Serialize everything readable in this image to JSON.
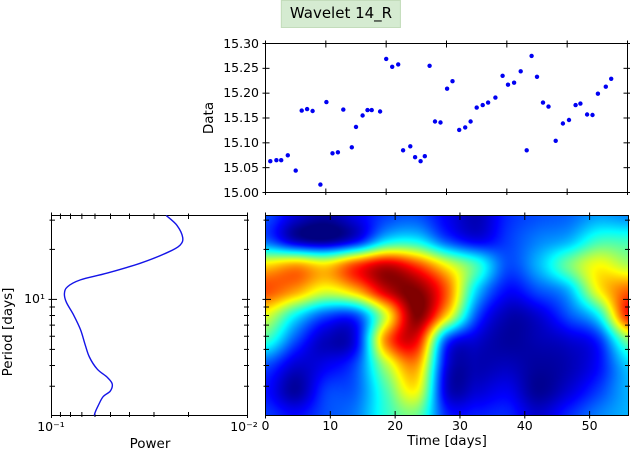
{
  "figure": {
    "title": "Wavelet 14_R",
    "title_bg": "#d5ebd1",
    "title_border": "#c3dcbb",
    "background": "#ffffff",
    "frame_color": "#000000"
  },
  "chart_data": [
    {
      "id": "data-scatter",
      "type": "scatter",
      "ylabel": "Data",
      "marker_color": "#0000f2",
      "xlim": [
        0,
        60
      ],
      "ylim": [
        15.0,
        15.3
      ],
      "xticks": [
        0,
        10,
        20,
        30,
        40,
        50,
        60
      ],
      "yticks": [
        15.0,
        15.05,
        15.1,
        15.15,
        15.2,
        15.25,
        15.3
      ],
      "ytick_labels": [
        "15.00",
        "15.05",
        "15.10",
        "15.15",
        "15.20",
        "15.25",
        "15.30"
      ],
      "points_time_mag": [
        [
          0.8,
          15.063
        ],
        [
          1.8,
          15.065
        ],
        [
          2.6,
          15.065
        ],
        [
          3.7,
          15.075
        ],
        [
          5.0,
          15.044
        ],
        [
          6.0,
          15.165
        ],
        [
          6.9,
          15.168
        ],
        [
          7.8,
          15.164
        ],
        [
          9.1,
          15.016
        ],
        [
          10.1,
          15.182
        ],
        [
          11.1,
          15.079
        ],
        [
          12.0,
          15.081
        ],
        [
          12.9,
          15.167
        ],
        [
          14.3,
          15.091
        ],
        [
          15.0,
          15.132
        ],
        [
          16.1,
          15.155
        ],
        [
          16.9,
          15.166
        ],
        [
          17.6,
          15.166
        ],
        [
          19.0,
          15.163
        ],
        [
          20.0,
          15.269
        ],
        [
          21.0,
          15.253
        ],
        [
          22.0,
          15.258
        ],
        [
          22.8,
          15.085
        ],
        [
          24.0,
          15.093
        ],
        [
          24.8,
          15.071
        ],
        [
          25.7,
          15.063
        ],
        [
          26.4,
          15.073
        ],
        [
          27.2,
          15.255
        ],
        [
          28.1,
          15.143
        ],
        [
          29.0,
          15.141
        ],
        [
          30.1,
          15.209
        ],
        [
          31.0,
          15.224
        ],
        [
          32.1,
          15.126
        ],
        [
          33.1,
          15.131
        ],
        [
          34.0,
          15.143
        ],
        [
          35.0,
          15.171
        ],
        [
          36.0,
          15.176
        ],
        [
          36.9,
          15.181
        ],
        [
          38.1,
          15.191
        ],
        [
          39.3,
          15.235
        ],
        [
          40.2,
          15.217
        ],
        [
          41.2,
          15.221
        ],
        [
          42.3,
          15.244
        ],
        [
          43.3,
          15.085
        ],
        [
          44.1,
          15.275
        ],
        [
          45.0,
          15.233
        ],
        [
          46.0,
          15.181
        ],
        [
          46.9,
          15.173
        ],
        [
          48.1,
          15.104
        ],
        [
          49.3,
          15.139
        ],
        [
          50.3,
          15.146
        ],
        [
          51.4,
          15.176
        ],
        [
          52.2,
          15.179
        ],
        [
          53.3,
          15.157
        ],
        [
          54.2,
          15.156
        ],
        [
          55.1,
          15.199
        ],
        [
          56.4,
          15.213
        ],
        [
          57.3,
          15.229
        ]
      ]
    },
    {
      "id": "power-spectrum",
      "type": "line",
      "xlabel": "Power",
      "ylabel": "Period [days]",
      "line_color": "#1414e8",
      "x_scale": "log-reversed",
      "y_scale": "log",
      "xlim": [
        0.1,
        0.01
      ],
      "ylim_period": [
        32,
        2
      ],
      "xtick_labels": [
        "10⁻¹",
        "10⁻²"
      ],
      "ytick_label_major": "10¹",
      "curve_power_period": [
        [
          0.026,
          32.0
        ],
        [
          0.0229,
          27.9
        ],
        [
          0.0214,
          23.6
        ],
        [
          0.0221,
          21.2
        ],
        [
          0.0255,
          19.2
        ],
        [
          0.0353,
          16.5
        ],
        [
          0.052,
          14.4
        ],
        [
          0.0712,
          13.1
        ],
        [
          0.083,
          11.9
        ],
        [
          0.0859,
          10.8
        ],
        [
          0.0839,
          9.6
        ],
        [
          0.0773,
          8.1
        ],
        [
          0.0712,
          6.6
        ],
        [
          0.0672,
          5.3
        ],
        [
          0.0641,
          4.5
        ],
        [
          0.0584,
          3.8
        ],
        [
          0.052,
          3.4
        ],
        [
          0.049,
          3.1
        ],
        [
          0.0502,
          2.8
        ],
        [
          0.0545,
          2.6
        ],
        [
          0.0577,
          2.3
        ],
        [
          0.0598,
          2.1
        ],
        [
          0.0605,
          2.0
        ]
      ]
    },
    {
      "id": "wavelet-heatmap",
      "type": "heatmap",
      "xlabel": "Time [days]",
      "colormap": "jet",
      "xlim": [
        0,
        56
      ],
      "xticks": [
        0,
        10,
        20,
        30,
        40,
        50
      ],
      "xtick_labels": [
        "0",
        "10",
        "20",
        "30",
        "40",
        "50"
      ],
      "y_scale": "log",
      "ylim_period": [
        32,
        2
      ],
      "grid_values_rows_top_to_bottom": [
        [
          0.2,
          0.08,
          0.03,
          0.1,
          0.18,
          0.2,
          0.11,
          0.05,
          0.16,
          0.2,
          0.22,
          0.28,
          0.26
        ],
        [
          0.22,
          0.06,
          0.02,
          0.12,
          0.35,
          0.37,
          0.2,
          0.11,
          0.18,
          0.25,
          0.3,
          0.43,
          0.43
        ],
        [
          0.66,
          0.72,
          0.66,
          0.82,
          0.93,
          0.82,
          0.62,
          0.43,
          0.2,
          0.3,
          0.48,
          0.62,
          0.55
        ],
        [
          0.8,
          0.72,
          0.6,
          0.7,
          0.93,
          1.0,
          0.78,
          0.33,
          0.13,
          0.2,
          0.3,
          0.62,
          0.78
        ],
        [
          0.6,
          0.37,
          0.2,
          0.2,
          0.6,
          1.0,
          0.66,
          0.2,
          0.05,
          0.08,
          0.2,
          0.37,
          0.85
        ],
        [
          0.43,
          0.2,
          0.06,
          0.12,
          0.75,
          0.88,
          0.2,
          0.08,
          0.03,
          0.05,
          0.08,
          0.16,
          0.5
        ],
        [
          0.2,
          0.08,
          0.11,
          0.2,
          0.55,
          0.72,
          0.1,
          0.05,
          0.06,
          0.03,
          0.05,
          0.13,
          0.33
        ],
        [
          0.14,
          0.03,
          0.18,
          0.22,
          0.45,
          0.62,
          0.08,
          0.08,
          0.11,
          0.02,
          0.08,
          0.18,
          0.3
        ],
        [
          0.18,
          0.13,
          0.2,
          0.25,
          0.42,
          0.48,
          0.16,
          0.15,
          0.16,
          0.08,
          0.16,
          0.25,
          0.3
        ]
      ]
    }
  ]
}
